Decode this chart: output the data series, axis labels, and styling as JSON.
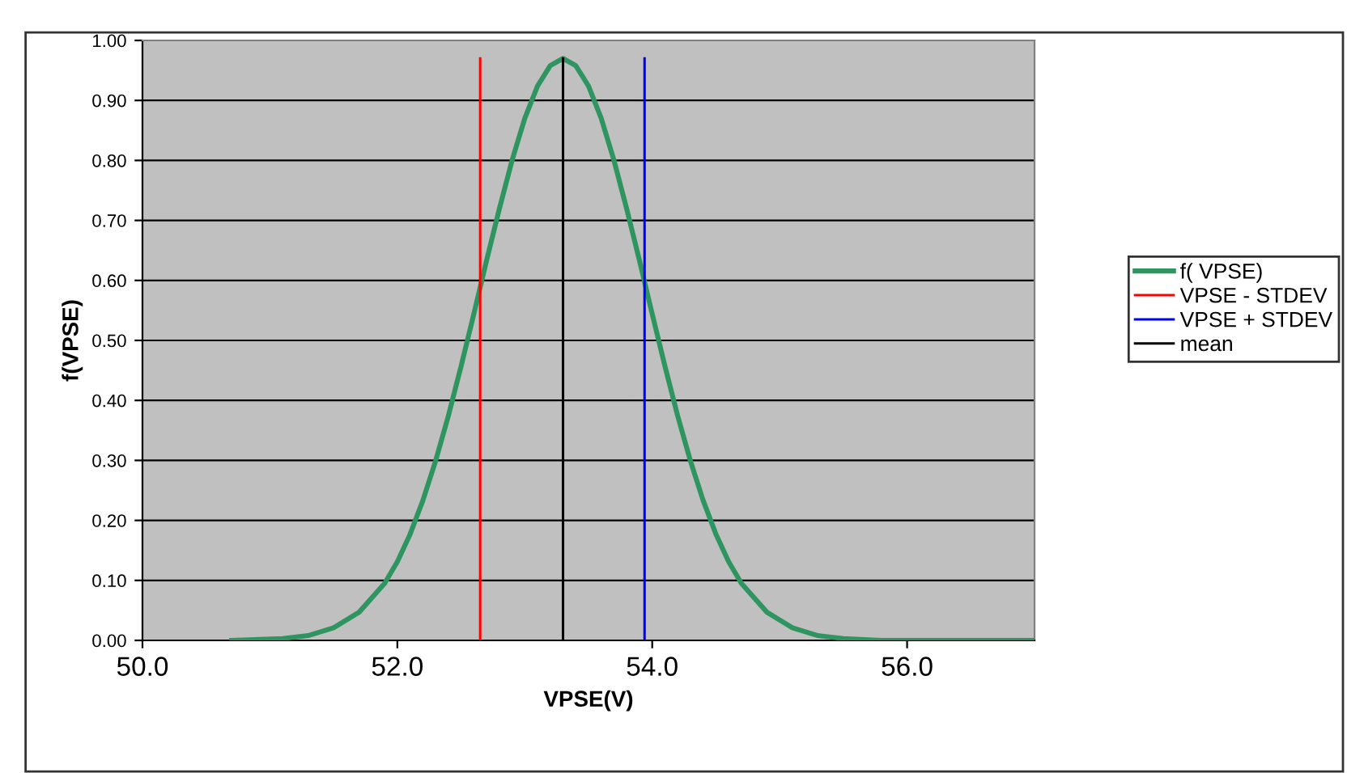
{
  "chart_data": {
    "type": "line",
    "xlabel": "VPSE(V)",
    "ylabel": "f(VPSE)",
    "xlim": [
      50,
      57
    ],
    "xticks": [
      {
        "value": 50,
        "label": "50.0"
      },
      {
        "value": 52,
        "label": "52.0"
      },
      {
        "value": 54,
        "label": "54.0"
      },
      {
        "value": 56,
        "label": "56.0"
      }
    ],
    "ylim": [
      0,
      1
    ],
    "yticks": [
      {
        "value": 0,
        "label": "0.00"
      },
      {
        "value": 0.1,
        "label": "0.10"
      },
      {
        "value": 0.2,
        "label": "0.20"
      },
      {
        "value": 0.3,
        "label": "0.30"
      },
      {
        "value": 0.4,
        "label": "0.40"
      },
      {
        "value": 0.5,
        "label": "0.50"
      },
      {
        "value": 0.6,
        "label": "0.60"
      },
      {
        "value": 0.7,
        "label": "0.70"
      },
      {
        "value": 0.8,
        "label": "0.80"
      },
      {
        "value": 0.9,
        "label": "0.90"
      },
      {
        "value": 1.0,
        "label": "1.00"
      }
    ],
    "grid": "y",
    "legend": "right",
    "marker": "none",
    "line_style": "solid",
    "series": [
      {
        "name": "f( VPSE)",
        "color": "#2e9560",
        "x": [
          50.7,
          51.1,
          51.3,
          51.5,
          51.7,
          51.9,
          52.0,
          52.1,
          52.2,
          52.3,
          52.4,
          52.5,
          52.6,
          52.7,
          52.8,
          52.9,
          53.0,
          53.1,
          53.2,
          53.3,
          53.4,
          53.5,
          53.6,
          53.7,
          53.8,
          53.9,
          54.0,
          54.1,
          54.2,
          54.3,
          54.4,
          54.5,
          54.6,
          54.7,
          54.9,
          55.1,
          55.3,
          55.5,
          55.8,
          57.0
        ],
        "values": [
          0.0,
          0.003,
          0.008,
          0.021,
          0.047,
          0.095,
          0.131,
          0.177,
          0.233,
          0.299,
          0.374,
          0.457,
          0.544,
          0.633,
          0.719,
          0.8,
          0.87,
          0.924,
          0.958,
          0.97,
          0.958,
          0.924,
          0.87,
          0.8,
          0.719,
          0.633,
          0.544,
          0.457,
          0.374,
          0.299,
          0.233,
          0.177,
          0.131,
          0.095,
          0.047,
          0.021,
          0.008,
          0.003,
          0.0,
          0.0
        ]
      },
      {
        "name": "VPSE - STDEV",
        "color": "#ff0000",
        "x": [
          52.65,
          52.65
        ],
        "values": [
          0,
          0.97
        ]
      },
      {
        "name": "VPSE + STDEV",
        "color": "#0000ff",
        "x": [
          53.94,
          53.94
        ],
        "values": [
          0,
          0.97
        ]
      },
      {
        "name": "mean",
        "color": "#000000",
        "x": [
          53.3,
          53.3
        ],
        "values": [
          0,
          0.97
        ]
      }
    ]
  }
}
